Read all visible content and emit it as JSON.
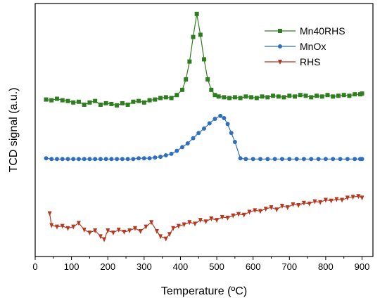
{
  "chart_data": {
    "type": "line",
    "xlabel": "Temperature (ºC)",
    "ylabel": "TCD signal (a.u.)",
    "xlim": [
      0,
      930
    ],
    "x_ticks": [
      0,
      100,
      200,
      300,
      400,
      500,
      600,
      700,
      800,
      900
    ],
    "y_ticks": "none",
    "legend": "top-right",
    "series": [
      {
        "name": "Mn40RHS",
        "color": "#2e7d1e",
        "marker": "square",
        "x": [
          30,
          45,
          60,
          75,
          90,
          105,
          120,
          135,
          150,
          165,
          180,
          195,
          210,
          225,
          240,
          255,
          270,
          285,
          300,
          315,
          330,
          345,
          360,
          375,
          390,
          405,
          415,
          425,
          435,
          445,
          455,
          465,
          475,
          485,
          495,
          505,
          520,
          535,
          550,
          565,
          580,
          595,
          610,
          625,
          640,
          655,
          670,
          685,
          700,
          715,
          730,
          745,
          760,
          775,
          790,
          805,
          820,
          835,
          850,
          865,
          880,
          895,
          900
        ],
        "y": [
          3.31,
          3.3,
          3.32,
          3.3,
          3.29,
          3.27,
          3.28,
          3.24,
          3.27,
          3.29,
          3.24,
          3.26,
          3.25,
          3.23,
          3.26,
          3.24,
          3.28,
          3.29,
          3.27,
          3.3,
          3.31,
          3.33,
          3.34,
          3.33,
          3.37,
          3.44,
          3.58,
          3.82,
          4.15,
          4.46,
          4.18,
          3.85,
          3.58,
          3.44,
          3.37,
          3.35,
          3.34,
          3.33,
          3.34,
          3.33,
          3.35,
          3.34,
          3.33,
          3.35,
          3.34,
          3.36,
          3.35,
          3.34,
          3.36,
          3.35,
          3.37,
          3.36,
          3.34,
          3.36,
          3.35,
          3.37,
          3.35,
          3.36,
          3.37,
          3.36,
          3.38,
          3.38,
          3.39
        ]
      },
      {
        "name": "MnOx",
        "color": "#2f6fbf",
        "marker": "circle",
        "x": [
          30,
          45,
          60,
          75,
          90,
          105,
          120,
          135,
          150,
          165,
          180,
          195,
          210,
          225,
          240,
          255,
          270,
          285,
          300,
          315,
          330,
          345,
          360,
          375,
          390,
          405,
          420,
          435,
          450,
          465,
          480,
          495,
          510,
          520,
          530,
          540,
          550,
          565,
          580,
          600,
          620,
          640,
          660,
          680,
          700,
          720,
          740,
          760,
          780,
          800,
          820,
          840,
          860,
          880,
          895,
          900
        ],
        "y": [
          2.52,
          2.51,
          2.51,
          2.51,
          2.51,
          2.51,
          2.51,
          2.51,
          2.51,
          2.51,
          2.51,
          2.51,
          2.51,
          2.51,
          2.51,
          2.51,
          2.51,
          2.52,
          2.52,
          2.52,
          2.53,
          2.54,
          2.56,
          2.58,
          2.62,
          2.67,
          2.72,
          2.79,
          2.86,
          2.92,
          2.99,
          3.05,
          3.09,
          3.06,
          2.98,
          2.86,
          2.74,
          2.52,
          2.51,
          2.51,
          2.51,
          2.51,
          2.51,
          2.51,
          2.51,
          2.51,
          2.51,
          2.51,
          2.51,
          2.51,
          2.51,
          2.51,
          2.51,
          2.51,
          2.51,
          2.51
        ]
      },
      {
        "name": "RHS",
        "color": "#b5381f",
        "marker": "triangle-down",
        "x": [
          40,
          45,
          60,
          75,
          90,
          105,
          120,
          135,
          150,
          165,
          180,
          190,
          200,
          215,
          230,
          245,
          260,
          275,
          290,
          305,
          320,
          335,
          345,
          360,
          370,
          380,
          395,
          410,
          425,
          440,
          455,
          470,
          485,
          500,
          515,
          530,
          545,
          560,
          575,
          590,
          605,
          620,
          635,
          650,
          665,
          680,
          695,
          710,
          725,
          740,
          755,
          770,
          785,
          800,
          815,
          830,
          845,
          860,
          875,
          890,
          900
        ],
        "y": [
          1.78,
          1.62,
          1.6,
          1.61,
          1.58,
          1.6,
          1.65,
          1.56,
          1.52,
          1.55,
          1.47,
          1.43,
          1.55,
          1.52,
          1.56,
          1.53,
          1.55,
          1.58,
          1.54,
          1.6,
          1.66,
          1.54,
          1.47,
          1.44,
          1.5,
          1.58,
          1.61,
          1.63,
          1.66,
          1.64,
          1.69,
          1.67,
          1.71,
          1.69,
          1.73,
          1.72,
          1.75,
          1.77,
          1.76,
          1.8,
          1.82,
          1.81,
          1.84,
          1.86,
          1.83,
          1.88,
          1.86,
          1.9,
          1.89,
          1.92,
          1.91,
          1.94,
          1.93,
          1.96,
          1.95,
          1.97,
          1.96,
          1.99,
          2.0,
          2.01,
          1.99
        ]
      }
    ]
  }
}
